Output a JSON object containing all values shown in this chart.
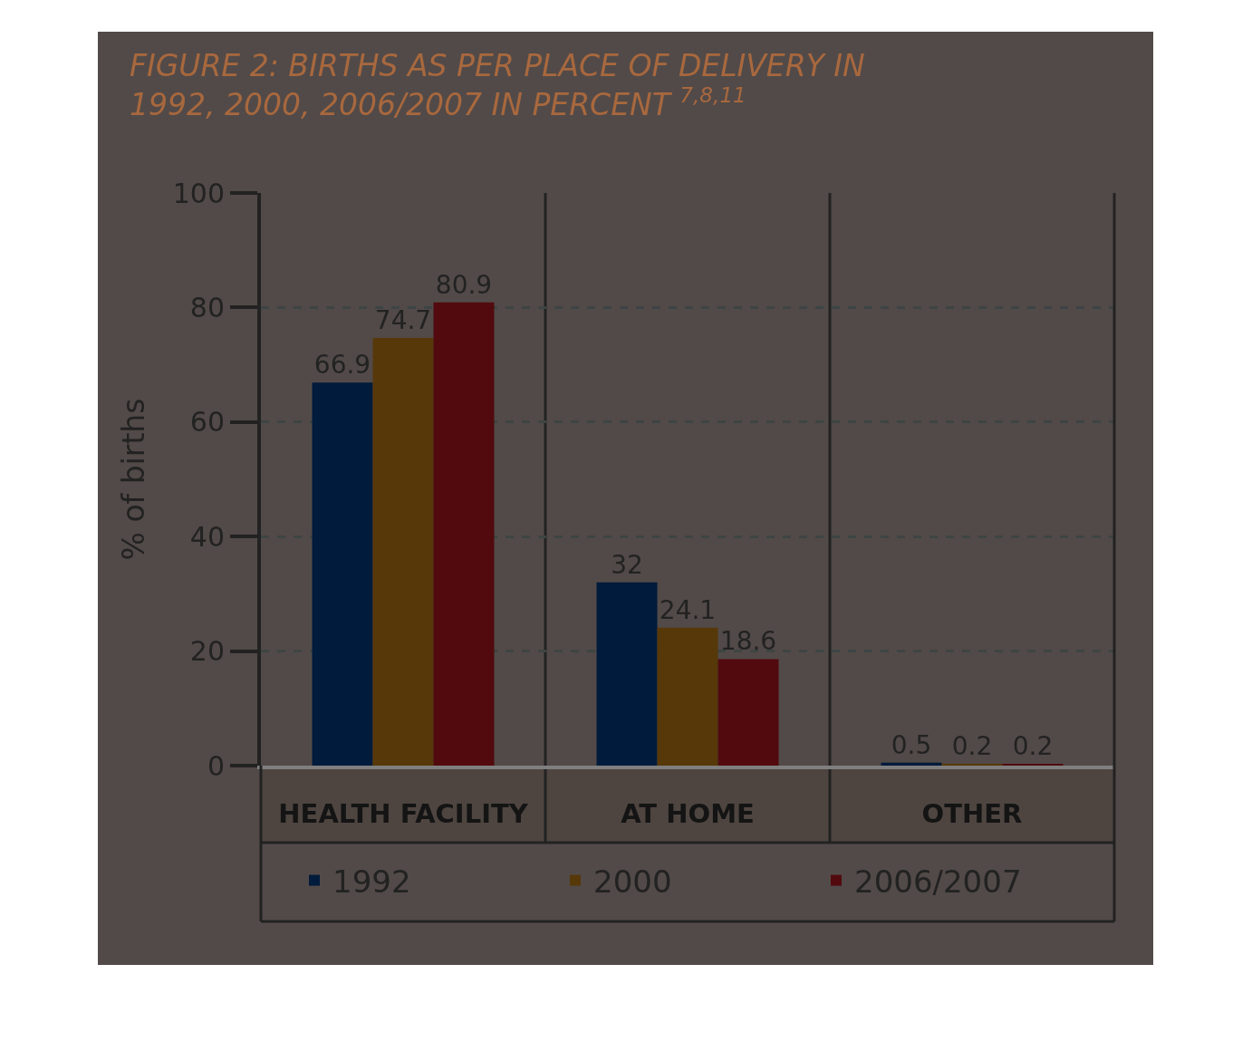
{
  "chart_data": {
    "type": "bar",
    "title": "FIGURE 2: BIRTHS AS PER PLACE OF DELIVERY IN 1992, 2000, 2006/2007 IN PERCENT $^{7,8,11}$",
    "ylabel": "% of births",
    "categories": [
      "HEALTH FACILITY",
      "AT HOME",
      "OTHER"
    ],
    "series": [
      {
        "name": "1992",
        "color": "#001b3b",
        "values": [
          66.9,
          32,
          0.5
        ]
      },
      {
        "name": "2000",
        "color": "#573809",
        "values": [
          74.7,
          24.1,
          0.2
        ]
      },
      {
        "name": "2006/2007",
        "color": "#520a0e",
        "values": [
          80.9,
          18.6,
          0.2
        ]
      }
    ],
    "ylim": [
      0,
      100
    ],
    "yticks": [
      0,
      20,
      40,
      60,
      80,
      100
    ],
    "grid": true,
    "legend": "bottom",
    "data_labels": true
  }
}
